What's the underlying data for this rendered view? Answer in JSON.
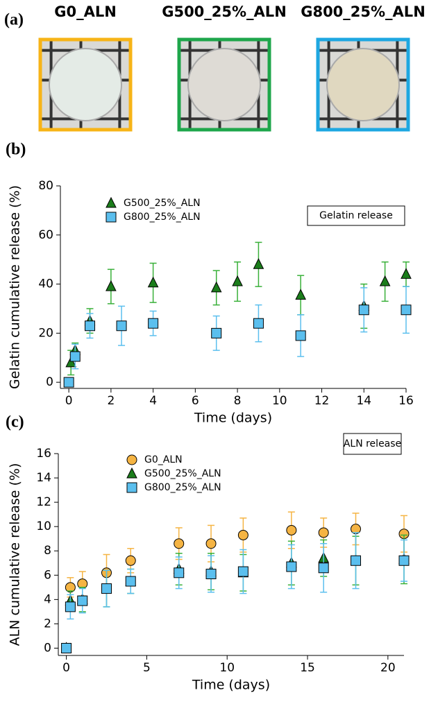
{
  "photos": {
    "label": "(a)",
    "samples": [
      "G0_ALN",
      "G500_25%_ALN",
      "G800_25%_ALN"
    ],
    "frame_colors": [
      "#f7b417",
      "#1ea64b",
      "#1ea7e1"
    ]
  },
  "chart_data": [
    {
      "type": "scatter",
      "panel_label": "(b)",
      "xlabel": "Time (days)",
      "ylabel": "Gelatin cumulative release (%)",
      "annotation": "Gelatin release",
      "xlim": [
        -0.4,
        16
      ],
      "xticks": [
        0,
        2,
        4,
        6,
        8,
        10,
        12,
        14,
        16
      ],
      "ylim": [
        -2.5,
        80
      ],
      "yticks": [
        0,
        20,
        40,
        60,
        80
      ],
      "legend": "upper left",
      "series": [
        {
          "name": "G500_25%_ALN",
          "color": "#1b7d1b",
          "error_color": "#39b039",
          "marker": "triangle",
          "x": [
            0.1,
            0.3,
            1,
            2,
            4,
            7,
            8,
            9,
            11,
            14,
            15,
            16
          ],
          "values": [
            8,
            13,
            25,
            39,
            40.5,
            38.5,
            41,
            48,
            35.5,
            31,
            41,
            44
          ],
          "errors": [
            5,
            3,
            5,
            7,
            8,
            7,
            8,
            9,
            8,
            9,
            8,
            5
          ]
        },
        {
          "name": "G800_25%_ALN",
          "color": "#5bbfee",
          "error_color": "#5bbfee",
          "marker": "square",
          "x": [
            0,
            0.3,
            1,
            2.5,
            4,
            7,
            9,
            11,
            14,
            16
          ],
          "values": [
            0,
            10.5,
            23,
            23,
            24,
            20,
            24,
            19,
            29.5,
            29.5
          ],
          "errors": [
            1,
            5,
            5,
            8,
            5,
            7,
            7.5,
            8.5,
            9,
            9.5
          ]
        }
      ]
    },
    {
      "type": "scatter",
      "panel_label": "(c)",
      "xlabel": "Time (days)",
      "ylabel": "ALN cumulative release (%)",
      "annotation": "ALN release",
      "xlim": [
        -0.5,
        21
      ],
      "xticks": [
        0,
        5,
        10,
        15,
        20
      ],
      "ylim": [
        -0.6,
        16
      ],
      "yticks": [
        0,
        2,
        4,
        6,
        8,
        10,
        12,
        14,
        16
      ],
      "legend": "upper left",
      "series": [
        {
          "name": "G0_ALN",
          "color": "#f5b443",
          "error_color": "#f5b443",
          "marker": "circle",
          "x": [
            0.25,
            1,
            2.5,
            4,
            7,
            9,
            11,
            14,
            16,
            18,
            21
          ],
          "values": [
            5.0,
            5.3,
            6.2,
            7.2,
            8.6,
            8.6,
            9.3,
            9.7,
            9.5,
            9.8,
            9.4
          ],
          "errors": [
            0.8,
            1,
            1.5,
            1,
            1.3,
            1.5,
            1.4,
            1.5,
            1.2,
            1.3,
            1.5
          ]
        },
        {
          "name": "G500_25%_ALN",
          "color": "#1b7d1b",
          "error_color": "#39b039",
          "marker": "triangle",
          "x": [
            0,
            0.25,
            1,
            2.5,
            4,
            7,
            9,
            11,
            14,
            16,
            18,
            21
          ],
          "values": [
            0,
            3.9,
            4,
            4.9,
            5.5,
            6.5,
            6.3,
            6.2,
            7,
            7.4,
            7.2,
            7.3
          ],
          "errors": [
            0.2,
            0.8,
            1,
            1.5,
            1,
            1.3,
            1.5,
            1.5,
            1.8,
            1.5,
            2,
            2
          ]
        },
        {
          "name": "G800_25%_ALN",
          "color": "#5bbfee",
          "error_color": "#5bbfee",
          "marker": "square",
          "x": [
            0,
            0.25,
            1,
            2.5,
            4,
            7,
            9,
            11,
            14,
            16,
            18,
            21
          ],
          "values": [
            0,
            3.4,
            3.9,
            4.9,
            5.5,
            6.2,
            6.1,
            6.3,
            6.7,
            6.6,
            7.2,
            7.2
          ],
          "errors": [
            0.2,
            1,
            1,
            1.5,
            1,
            1.3,
            1.5,
            1.8,
            1.8,
            2,
            2.3,
            1.7
          ]
        }
      ]
    }
  ]
}
